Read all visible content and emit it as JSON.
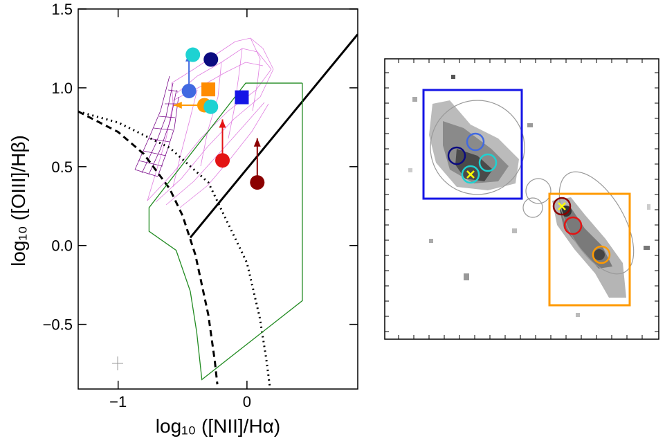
{
  "chart_data": {
    "type": "scatter",
    "xlabel": "log₁₀ ([NII]/Hα)",
    "ylabel": "log₁₀ ([OIII]/Hβ)",
    "xlim": [
      -1.31,
      0.86
    ],
    "ylim": [
      -0.91,
      1.5
    ],
    "xticks": [
      {
        "value": -1,
        "label": "−1"
      },
      0
    ],
    "yticks": [
      {
        "value": -0.5,
        "label": "−0.5"
      },
      {
        "value": 0,
        "label": "0.0"
      },
      0.5,
      {
        "value": 1,
        "label": "1.0"
      },
      1.5
    ],
    "series": [
      {
        "style": "dashed",
        "color": "#000000",
        "x": [
          -1.31,
          -1.0,
          -0.8,
          -0.6,
          -0.5,
          -0.4,
          -0.3,
          -0.25,
          -0.23
        ],
        "values": [
          0.85,
          0.72,
          0.58,
          0.36,
          0.19,
          -0.06,
          -0.44,
          -0.73,
          -0.88
        ]
      },
      {
        "style": "dotted",
        "color": "#000000",
        "x": [
          -1.31,
          -1.0,
          -0.6,
          -0.3,
          0.0,
          0.1,
          0.15,
          0.18
        ],
        "values": [
          0.85,
          0.78,
          0.62,
          0.4,
          -0.11,
          -0.46,
          -0.72,
          -0.91
        ]
      },
      {
        "style": "solid",
        "color": "#000000",
        "x": [
          -0.44,
          0.86
        ],
        "values": [
          0.05,
          1.34
        ]
      },
      {
        "style": "polygon",
        "color": "#228b22",
        "x": [
          0.43,
          -0.01,
          -0.76,
          -0.76,
          -0.55,
          -0.44,
          -0.39,
          -0.35,
          0.43,
          0.43
        ],
        "values": [
          1.03,
          1.03,
          0.24,
          0.09,
          -0.03,
          -0.29,
          -0.55,
          -0.85,
          -0.35,
          1.03
        ]
      },
      {
        "marker": "circle",
        "color": "#4169e1",
        "x": [
          -0.45
        ],
        "values": [
          0.98
        ],
        "arrow_y": 1.22
      },
      {
        "marker": "circle",
        "color": "#1ed2d2",
        "x": [
          -0.42
        ],
        "values": [
          1.21
        ]
      },
      {
        "marker": "circle",
        "color": "#0b0b80",
        "x": [
          -0.28
        ],
        "values": [
          1.18
        ]
      },
      {
        "marker": "square",
        "color": "#ff8c00",
        "x": [
          -0.3
        ],
        "values": [
          0.99
        ]
      },
      {
        "marker": "square",
        "color": "#1515e6",
        "x": [
          -0.04
        ],
        "values": [
          0.94
        ]
      },
      {
        "marker": "circle",
        "color": "#ff9a00",
        "x": [
          -0.33
        ],
        "values": [
          0.89
        ],
        "arrow_x": -0.57
      },
      {
        "marker": "circle",
        "color": "#1ed2d2",
        "x": [
          -0.28
        ],
        "values": [
          0.88
        ]
      },
      {
        "marker": "circle",
        "color": "#e31414",
        "x": [
          -0.19
        ],
        "values": [
          0.54
        ],
        "arrow_y": 0.8
      },
      {
        "marker": "circle",
        "color": "#8b0000",
        "x": [
          0.08
        ],
        "values": [
          0.4
        ],
        "arrow_y": 0.68
      }
    ]
  }
}
